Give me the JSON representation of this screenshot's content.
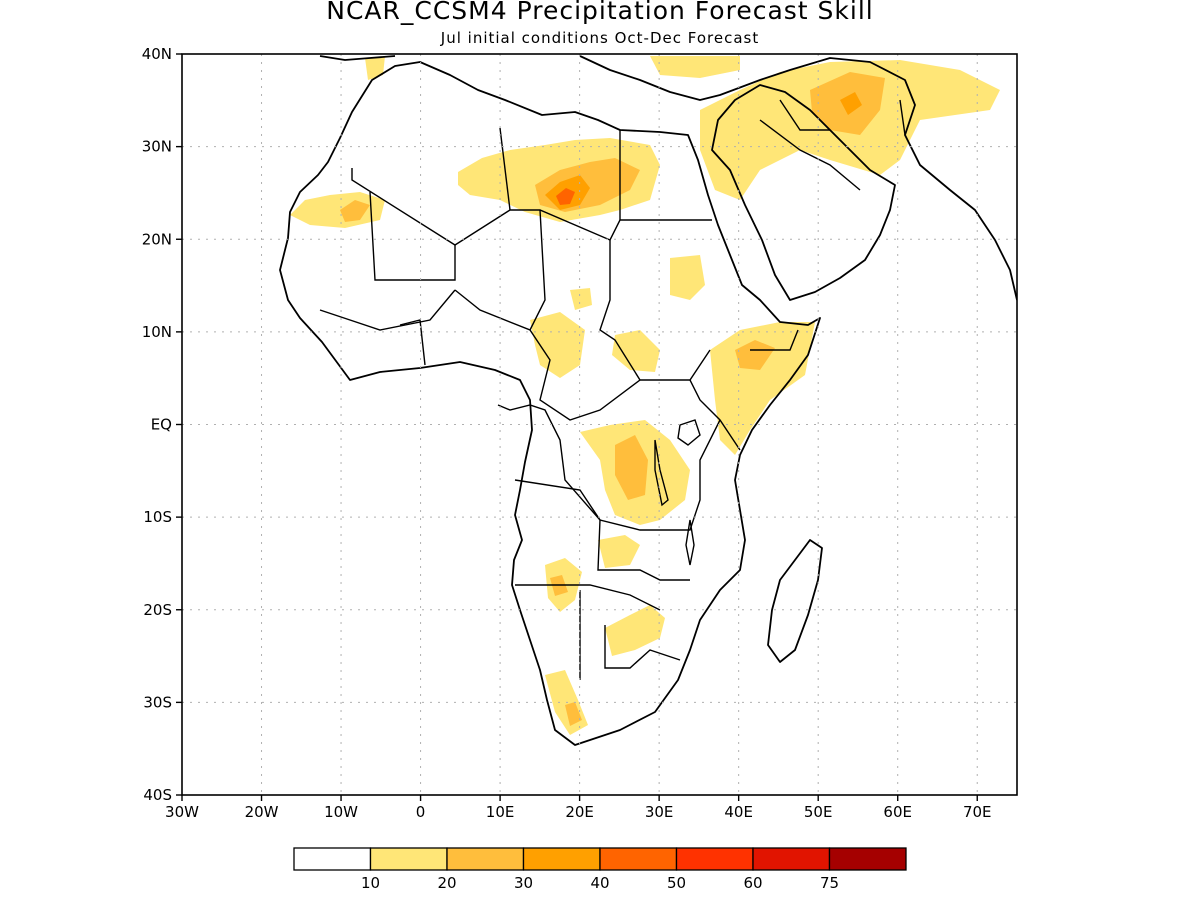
{
  "title": "NCAR_CCSM4 Precipitation Forecast Skill",
  "subtitle": "Jul initial conditions  Oct-Dec Forecast",
  "lat_labels": [
    "40N",
    "30N",
    "20N",
    "10N",
    "EQ",
    "10S",
    "20S",
    "30S",
    "40S"
  ],
  "lon_labels": [
    "30W",
    "20W",
    "10W",
    "0",
    "10E",
    "20E",
    "30E",
    "40E",
    "50E",
    "60E",
    "70E"
  ],
  "colorbar": {
    "colors": [
      "#ffffff",
      "#ffe677",
      "#ffbe3c",
      "#ffa000",
      "#ff6400",
      "#ff3200",
      "#e11400",
      "#a50000"
    ],
    "labels": [
      "10",
      "20",
      "30",
      "40",
      "50",
      "60",
      "75"
    ]
  },
  "map_extent": {
    "lon": [
      -30,
      75
    ],
    "lat": [
      -40,
      40
    ]
  }
}
